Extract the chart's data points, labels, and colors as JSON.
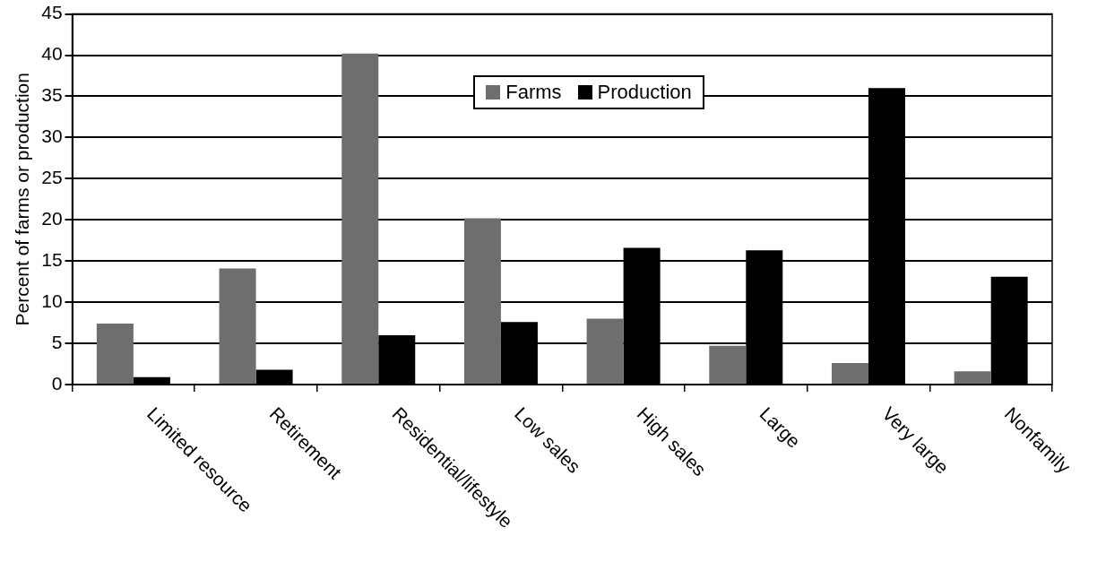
{
  "chart_data": {
    "type": "bar",
    "ylabel": "Percent of farms or production",
    "categories": [
      "Limited resource",
      "Retirement",
      "Residential/lifestyle",
      "Low sales",
      "High sales",
      "Large",
      "Very large",
      "Nonfamily"
    ],
    "series": [
      {
        "name": "Farms",
        "color": "#6e6e6e",
        "values": [
          7.4,
          14.1,
          40.2,
          20.2,
          8.0,
          4.7,
          2.6,
          1.6
        ]
      },
      {
        "name": "Production",
        "color": "#000000",
        "values": [
          0.9,
          1.8,
          6.0,
          7.6,
          16.6,
          16.3,
          36.0,
          13.1
        ]
      }
    ],
    "ylim": [
      0,
      45
    ],
    "yticks": [
      0,
      5,
      10,
      15,
      20,
      25,
      30,
      35,
      40,
      45
    ],
    "grid": "y",
    "legend": "top"
  }
}
